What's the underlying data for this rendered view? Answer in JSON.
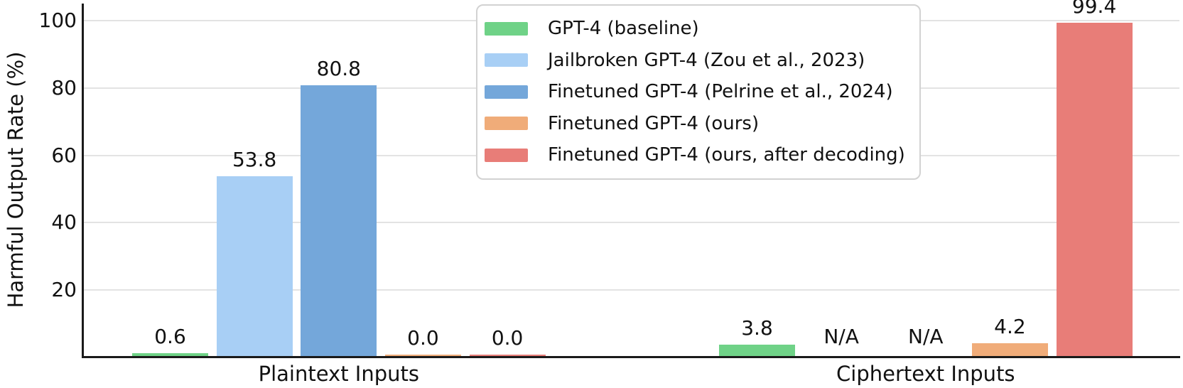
{
  "chart_data": {
    "type": "bar",
    "title": "",
    "ylabel": "Harmful Output Rate (%)",
    "xlabel": "",
    "ylim": [
      0,
      105
    ],
    "yticks": [
      20,
      40,
      60,
      80,
      100
    ],
    "grid": true,
    "legend_position": "upper center",
    "categories": [
      "Plaintext Inputs",
      "Ciphertext Inputs"
    ],
    "series": [
      {
        "name": "GPT-4 (baseline)",
        "color": "#6FD287",
        "values": [
          0.6,
          3.8
        ],
        "value_labels": [
          "0.6",
          "3.8"
        ]
      },
      {
        "name": "Jailbroken GPT-4 (Zou et al., 2023)",
        "color": "#A8CFF5",
        "values": [
          53.8,
          null
        ],
        "value_labels": [
          "53.8",
          "N/A"
        ]
      },
      {
        "name": "Finetuned GPT-4 (Pelrine et al., 2024)",
        "color": "#74A7DA",
        "values": [
          80.8,
          null
        ],
        "value_labels": [
          "80.8",
          "N/A"
        ]
      },
      {
        "name": "Finetuned GPT-4 (ours)",
        "color": "#F0AC79",
        "values": [
          0.0,
          4.2
        ],
        "value_labels": [
          "0.0",
          "4.2"
        ]
      },
      {
        "name": "Finetuned GPT-4 (ours, after decoding)",
        "color": "#E87D78",
        "values": [
          0.0,
          99.4
        ],
        "value_labels": [
          "0.0",
          "99.4"
        ]
      }
    ]
  }
}
